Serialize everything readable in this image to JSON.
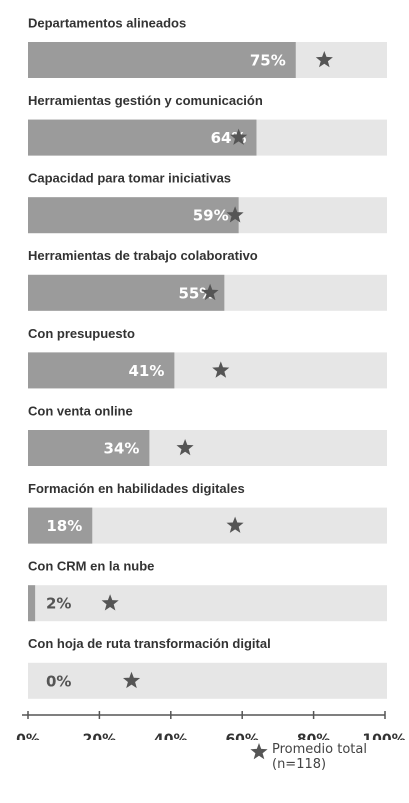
{
  "chart_data": {
    "type": "bar",
    "categories": [
      "Departamentos alineados",
      "Herramientas gestión y comunicación",
      "Capacidad para tomar iniciativas",
      "Herramientas de trabajo colaborativo",
      "Con presupuesto",
      "Con venta online",
      "Formación en habilidades digitales",
      "Con CRM en la nube",
      "Con hoja de ruta transformación digital"
    ],
    "values": [
      75,
      64,
      59,
      55,
      41,
      34,
      18,
      2,
      0
    ],
    "value_labels": [
      "75%",
      "64%",
      "59%",
      "55%",
      "41%",
      "34%",
      "18%",
      "2%",
      "0%"
    ],
    "color": "#9b9b9b",
    "track_color": "#e6e6e6",
    "average": {
      "name": "Promedio total (n=118)",
      "color": "#555555",
      "values": [
        83,
        59,
        58,
        51,
        54,
        44,
        58,
        23,
        29
      ]
    },
    "xlim": [
      0,
      100
    ],
    "xticks": [
      {
        "value": 0,
        "label": "0%"
      },
      {
        "value": 20,
        "label": "20%"
      },
      {
        "value": 40,
        "label": "40%"
      },
      {
        "value": 60,
        "label": "60%"
      },
      {
        "value": 80,
        "label": "80%"
      },
      {
        "value": 100,
        "label": "100%"
      }
    ]
  }
}
